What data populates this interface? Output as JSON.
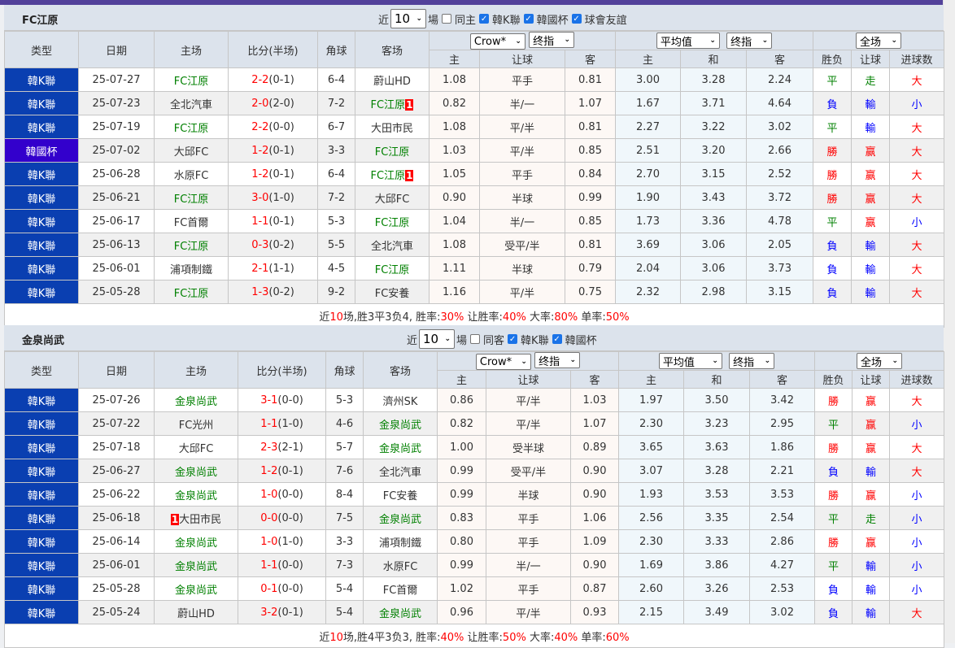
{
  "colors": {
    "topbar": "#52419a",
    "league": "#0a3fb1",
    "cup": "#3300cc",
    "highlight": "#008000",
    "win": "#ff0000",
    "draw": "#008000",
    "loss": "#0000ff"
  },
  "headers": {
    "type": "类型",
    "date": "日期",
    "home": "主场",
    "score": "比分(半场)",
    "corners": "角球",
    "away": "客场",
    "home_odds": "主",
    "handicap": "让球",
    "away_odds": "客",
    "avg_home": "主",
    "avg_draw": "和",
    "avg_away": "客",
    "result": "胜负",
    "hcp_result": "让球",
    "goals": "进球数"
  },
  "selects": {
    "company": "Crow*",
    "odds_type": "终指",
    "avg": "平均值",
    "avg_type": "终指",
    "period": "全场"
  },
  "sections": [
    {
      "title": "FC江原",
      "filters": {
        "prefix": "近",
        "count": "10",
        "suffix": "場",
        "options": [
          {
            "label": "同主",
            "checked": false
          },
          {
            "label": "韓K聯",
            "checked": true
          },
          {
            "label": "韓國杯",
            "checked": true
          },
          {
            "label": "球會友誼",
            "checked": true
          }
        ]
      },
      "rows": [
        {
          "league": "韓K聯",
          "date": "25-07-27",
          "home": "FC江原",
          "home_hl": true,
          "home_rc": "",
          "score": "2-2",
          "half": "(0-1)",
          "corners": "6-4",
          "away": "蔚山HD",
          "away_hl": false,
          "away_rc": "",
          "o_home": "1.08",
          "o_line": "平手",
          "o_away": "0.81",
          "a_home": "3.00",
          "a_draw": "3.28",
          "a_away": "2.24",
          "res": "平",
          "hres": "走",
          "goals": "大"
        },
        {
          "league": "韓K聯",
          "date": "25-07-23",
          "home": "全北汽車",
          "home_hl": false,
          "home_rc": "",
          "score": "2-0",
          "half": "(2-0)",
          "corners": "7-2",
          "away": "FC江原",
          "away_hl": true,
          "away_rc": "1",
          "o_home": "0.82",
          "o_line": "半/一",
          "o_away": "1.07",
          "a_home": "1.67",
          "a_draw": "3.71",
          "a_away": "4.64",
          "res": "負",
          "hres": "輸",
          "goals": "小"
        },
        {
          "league": "韓K聯",
          "date": "25-07-19",
          "home": "FC江原",
          "home_hl": true,
          "home_rc": "",
          "score": "2-2",
          "half": "(0-0)",
          "corners": "6-7",
          "away": "大田市民",
          "away_hl": false,
          "away_rc": "",
          "o_home": "1.08",
          "o_line": "平/半",
          "o_away": "0.81",
          "a_home": "2.27",
          "a_draw": "3.22",
          "a_away": "3.02",
          "res": "平",
          "hres": "輸",
          "goals": "大"
        },
        {
          "league": "韓國杯",
          "date": "25-07-02",
          "home": "大邱FC",
          "home_hl": false,
          "home_rc": "",
          "score": "1-2",
          "half": "(0-1)",
          "corners": "3-3",
          "away": "FC江原",
          "away_hl": true,
          "away_rc": "",
          "o_home": "1.03",
          "o_line": "平/半",
          "o_away": "0.85",
          "a_home": "2.51",
          "a_draw": "3.20",
          "a_away": "2.66",
          "res": "勝",
          "hres": "赢",
          "goals": "大"
        },
        {
          "league": "韓K聯",
          "date": "25-06-28",
          "home": "水原FC",
          "home_hl": false,
          "home_rc": "",
          "score": "1-2",
          "half": "(0-1)",
          "corners": "6-4",
          "away": "FC江原",
          "away_hl": true,
          "away_rc": "1",
          "o_home": "1.05",
          "o_line": "平手",
          "o_away": "0.84",
          "a_home": "2.70",
          "a_draw": "3.15",
          "a_away": "2.52",
          "res": "勝",
          "hres": "赢",
          "goals": "大"
        },
        {
          "league": "韓K聯",
          "date": "25-06-21",
          "home": "FC江原",
          "home_hl": true,
          "home_rc": "",
          "score": "3-0",
          "half": "(1-0)",
          "corners": "7-2",
          "away": "大邱FC",
          "away_hl": false,
          "away_rc": "",
          "o_home": "0.90",
          "o_line": "半球",
          "o_away": "0.99",
          "a_home": "1.90",
          "a_draw": "3.43",
          "a_away": "3.72",
          "res": "勝",
          "hres": "赢",
          "goals": "大"
        },
        {
          "league": "韓K聯",
          "date": "25-06-17",
          "home": "FC首爾",
          "home_hl": false,
          "home_rc": "",
          "score": "1-1",
          "half": "(0-1)",
          "corners": "5-3",
          "away": "FC江原",
          "away_hl": true,
          "away_rc": "",
          "o_home": "1.04",
          "o_line": "半/一",
          "o_away": "0.85",
          "a_home": "1.73",
          "a_draw": "3.36",
          "a_away": "4.78",
          "res": "平",
          "hres": "赢",
          "goals": "小"
        },
        {
          "league": "韓K聯",
          "date": "25-06-13",
          "home": "FC江原",
          "home_hl": true,
          "home_rc": "",
          "score": "0-3",
          "half": "(0-2)",
          "corners": "5-5",
          "away": "全北汽車",
          "away_hl": false,
          "away_rc": "",
          "o_home": "1.08",
          "o_line": "受平/半",
          "o_away": "0.81",
          "a_home": "3.69",
          "a_draw": "3.06",
          "a_away": "2.05",
          "res": "負",
          "hres": "輸",
          "goals": "大"
        },
        {
          "league": "韓K聯",
          "date": "25-06-01",
          "home": "浦項制鐵",
          "home_hl": false,
          "home_rc": "",
          "score": "2-1",
          "half": "(1-1)",
          "corners": "4-5",
          "away": "FC江原",
          "away_hl": true,
          "away_rc": "",
          "o_home": "1.11",
          "o_line": "半球",
          "o_away": "0.79",
          "a_home": "2.04",
          "a_draw": "3.06",
          "a_away": "3.73",
          "res": "負",
          "hres": "輸",
          "goals": "大"
        },
        {
          "league": "韓K聯",
          "date": "25-05-28",
          "home": "FC江原",
          "home_hl": true,
          "home_rc": "",
          "score": "1-3",
          "half": "(0-2)",
          "corners": "9-2",
          "away": "FC安養",
          "away_hl": false,
          "away_rc": "",
          "o_home": "1.16",
          "o_line": "平/半",
          "o_away": "0.75",
          "a_home": "2.32",
          "a_draw": "2.98",
          "a_away": "3.15",
          "res": "負",
          "hres": "輸",
          "goals": "大"
        }
      ],
      "summary": {
        "p1": "近",
        "count": "10",
        "p2": "场,胜3平3负4, 胜率:",
        "win_rate": "30%",
        "p3": " 让胜率:",
        "hcp_rate": "40%",
        "p4": " 大率:",
        "over_rate": "80%",
        "p5": " 单率:",
        "odd_rate": "50%"
      }
    },
    {
      "title": "金泉尚武",
      "filters": {
        "prefix": "近",
        "count": "10",
        "suffix": "場",
        "options": [
          {
            "label": "同客",
            "checked": false
          },
          {
            "label": "韓K聯",
            "checked": true
          },
          {
            "label": "韓國杯",
            "checked": true
          }
        ]
      },
      "rows": [
        {
          "league": "韓K聯",
          "date": "25-07-26",
          "home": "金泉尚武",
          "home_hl": true,
          "home_rc": "",
          "score": "3-1",
          "half": "(0-0)",
          "corners": "5-3",
          "away": "濟州SK",
          "away_hl": false,
          "away_rc": "",
          "o_home": "0.86",
          "o_line": "平/半",
          "o_away": "1.03",
          "a_home": "1.97",
          "a_draw": "3.50",
          "a_away": "3.42",
          "res": "勝",
          "hres": "赢",
          "goals": "大"
        },
        {
          "league": "韓K聯",
          "date": "25-07-22",
          "home": "FC光州",
          "home_hl": false,
          "home_rc": "",
          "score": "1-1",
          "half": "(1-0)",
          "corners": "4-6",
          "away": "金泉尚武",
          "away_hl": true,
          "away_rc": "",
          "o_home": "0.82",
          "o_line": "平/半",
          "o_away": "1.07",
          "a_home": "2.30",
          "a_draw": "3.23",
          "a_away": "2.95",
          "res": "平",
          "hres": "赢",
          "goals": "小"
        },
        {
          "league": "韓K聯",
          "date": "25-07-18",
          "home": "大邱FC",
          "home_hl": false,
          "home_rc": "",
          "score": "2-3",
          "half": "(2-1)",
          "corners": "5-7",
          "away": "金泉尚武",
          "away_hl": true,
          "away_rc": "",
          "o_home": "1.00",
          "o_line": "受半球",
          "o_away": "0.89",
          "a_home": "3.65",
          "a_draw": "3.63",
          "a_away": "1.86",
          "res": "勝",
          "hres": "赢",
          "goals": "大"
        },
        {
          "league": "韓K聯",
          "date": "25-06-27",
          "home": "金泉尚武",
          "home_hl": true,
          "home_rc": "",
          "score": "1-2",
          "half": "(0-1)",
          "corners": "7-6",
          "away": "全北汽車",
          "away_hl": false,
          "away_rc": "",
          "o_home": "0.99",
          "o_line": "受平/半",
          "o_away": "0.90",
          "a_home": "3.07",
          "a_draw": "3.28",
          "a_away": "2.21",
          "res": "負",
          "hres": "輸",
          "goals": "大"
        },
        {
          "league": "韓K聯",
          "date": "25-06-22",
          "home": "金泉尚武",
          "home_hl": true,
          "home_rc": "",
          "score": "1-0",
          "half": "(0-0)",
          "corners": "8-4",
          "away": "FC安養",
          "away_hl": false,
          "away_rc": "",
          "o_home": "0.99",
          "o_line": "半球",
          "o_away": "0.90",
          "a_home": "1.93",
          "a_draw": "3.53",
          "a_away": "3.53",
          "res": "勝",
          "hres": "赢",
          "goals": "小"
        },
        {
          "league": "韓K聯",
          "date": "25-06-18",
          "home": "大田市民",
          "home_hl": false,
          "home_rc": "1",
          "score": "0-0",
          "half": "(0-0)",
          "corners": "7-5",
          "away": "金泉尚武",
          "away_hl": true,
          "away_rc": "",
          "o_home": "0.83",
          "o_line": "平手",
          "o_away": "1.06",
          "a_home": "2.56",
          "a_draw": "3.35",
          "a_away": "2.54",
          "res": "平",
          "hres": "走",
          "goals": "小"
        },
        {
          "league": "韓K聯",
          "date": "25-06-14",
          "home": "金泉尚武",
          "home_hl": true,
          "home_rc": "",
          "score": "1-0",
          "half": "(1-0)",
          "corners": "3-3",
          "away": "浦項制鐵",
          "away_hl": false,
          "away_rc": "",
          "o_home": "0.80",
          "o_line": "平手",
          "o_away": "1.09",
          "a_home": "2.30",
          "a_draw": "3.33",
          "a_away": "2.86",
          "res": "勝",
          "hres": "赢",
          "goals": "小"
        },
        {
          "league": "韓K聯",
          "date": "25-06-01",
          "home": "金泉尚武",
          "home_hl": true,
          "home_rc": "",
          "score": "1-1",
          "half": "(0-0)",
          "corners": "7-3",
          "away": "水原FC",
          "away_hl": false,
          "away_rc": "",
          "o_home": "0.99",
          "o_line": "半/一",
          "o_away": "0.90",
          "a_home": "1.69",
          "a_draw": "3.86",
          "a_away": "4.27",
          "res": "平",
          "hres": "輸",
          "goals": "小"
        },
        {
          "league": "韓K聯",
          "date": "25-05-28",
          "home": "金泉尚武",
          "home_hl": true,
          "home_rc": "",
          "score": "0-1",
          "half": "(0-0)",
          "corners": "5-4",
          "away": "FC首爾",
          "away_hl": false,
          "away_rc": "",
          "o_home": "1.02",
          "o_line": "平手",
          "o_away": "0.87",
          "a_home": "2.60",
          "a_draw": "3.26",
          "a_away": "2.53",
          "res": "負",
          "hres": "輸",
          "goals": "小"
        },
        {
          "league": "韓K聯",
          "date": "25-05-24",
          "home": "蔚山HD",
          "home_hl": false,
          "home_rc": "",
          "score": "3-2",
          "half": "(0-1)",
          "corners": "5-4",
          "away": "金泉尚武",
          "away_hl": true,
          "away_rc": "",
          "o_home": "0.96",
          "o_line": "平/半",
          "o_away": "0.93",
          "a_home": "2.15",
          "a_draw": "3.49",
          "a_away": "3.02",
          "res": "負",
          "hres": "輸",
          "goals": "大"
        }
      ],
      "summary": {
        "p1": "近",
        "count": "10",
        "p2": "场,胜4平3负3, 胜率:",
        "win_rate": "40%",
        "p3": " 让胜率:",
        "hcp_rate": "50%",
        "p4": " 大率:",
        "over_rate": "40%",
        "p5": " 单率:",
        "odd_rate": "60%"
      }
    }
  ]
}
